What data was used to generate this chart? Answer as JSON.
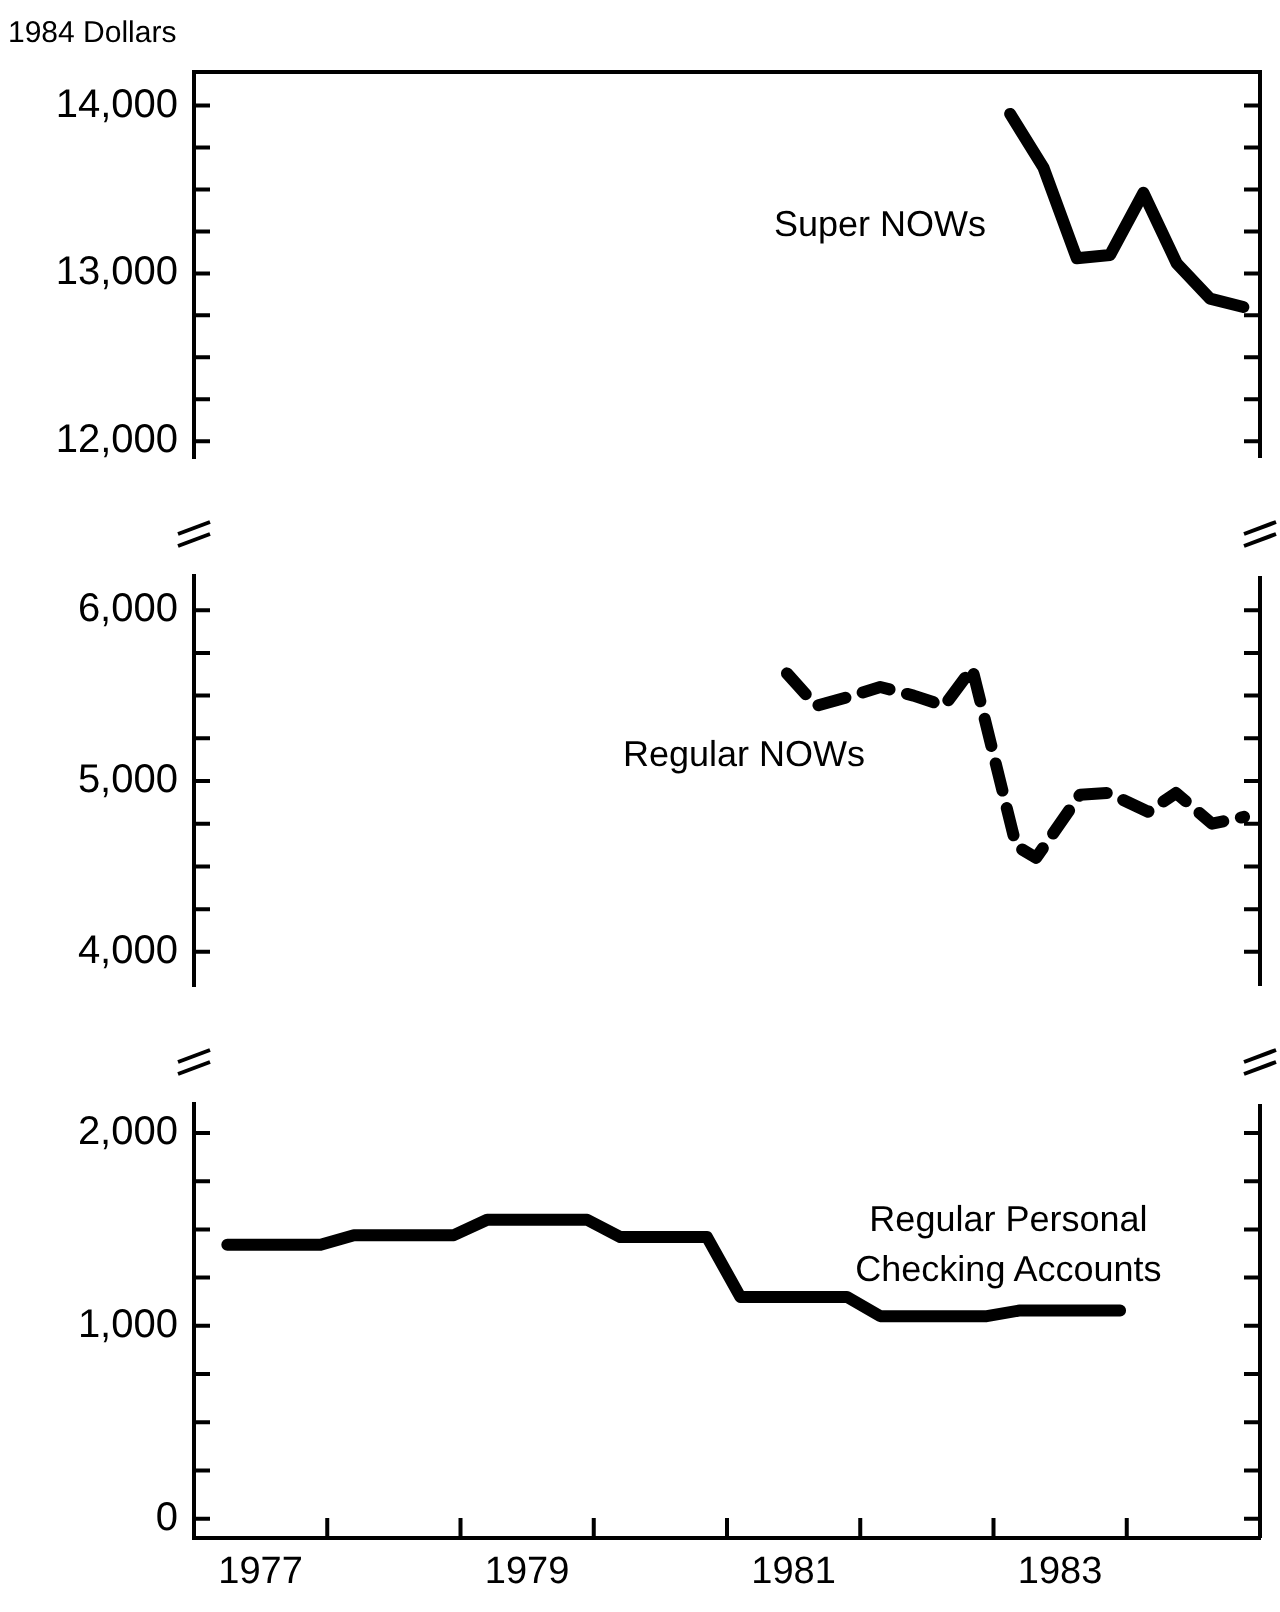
{
  "chart_data": [
    {
      "type": "line",
      "ylabel": "1984 Dollars",
      "marker": "none",
      "tick_labels": "y",
      "xlim": [
        1977,
        1985
      ],
      "ylim": [
        11900,
        14200
      ],
      "yticks": [
        {
          "value": 12000,
          "label": "12,000"
        },
        {
          "value": 12250,
          "label": null
        },
        {
          "value": 12500,
          "label": null
        },
        {
          "value": 12750,
          "label": null
        },
        {
          "value": 13000,
          "label": "13,000"
        },
        {
          "value": 13250,
          "label": null
        },
        {
          "value": 13500,
          "label": null
        },
        {
          "value": 13750,
          "label": null
        },
        {
          "value": 14000,
          "label": "14,000"
        }
      ],
      "series": [
        {
          "name": "Super NOWs",
          "color": "#000000",
          "line_style": "solid",
          "x": [
            1983.125,
            1983.375,
            1983.625,
            1983.875,
            1984.125,
            1984.375,
            1984.625,
            1984.875
          ],
          "values": [
            13950,
            13630,
            13090,
            13110,
            13480,
            13060,
            12850,
            12800
          ]
        }
      ]
    },
    {
      "type": "line",
      "marker": "none",
      "tick_labels": "y",
      "xlim": [
        1977,
        1985
      ],
      "ylim": [
        3800,
        6200
      ],
      "yticks": [
        {
          "value": 4000,
          "label": "4,000"
        },
        {
          "value": 4250,
          "label": null
        },
        {
          "value": 4500,
          "label": null
        },
        {
          "value": 4750,
          "label": null
        },
        {
          "value": 5000,
          "label": "5,000"
        },
        {
          "value": 5250,
          "label": null
        },
        {
          "value": 5500,
          "label": null
        },
        {
          "value": 5750,
          "label": null
        },
        {
          "value": 6000,
          "label": "6,000"
        }
      ],
      "series": [
        {
          "name": "Regular NOWs",
          "color": "#000000",
          "line_style": "dashed",
          "x": [
            1981.45,
            1981.67,
            1981.9,
            1982.15,
            1982.4,
            1982.63,
            1982.84,
            1983.1,
            1983.17,
            1983.32,
            1983.65,
            1983.86,
            1984.16,
            1984.37,
            1984.64,
            1984.88
          ],
          "values": [
            5630,
            5440,
            5490,
            5550,
            5500,
            5440,
            5660,
            4840,
            4620,
            4550,
            4920,
            4930,
            4820,
            4930,
            4750,
            4790
          ]
        }
      ]
    },
    {
      "type": "line",
      "marker": "none",
      "xlim": [
        1977,
        1985
      ],
      "xticks": [
        {
          "value": 1977.5,
          "label": "1977"
        },
        {
          "value": 1978,
          "label": null
        },
        {
          "value": 1979,
          "label": null
        },
        {
          "value": 1979.5,
          "label": "1979"
        },
        {
          "value": 1980,
          "label": null
        },
        {
          "value": 1981,
          "label": null
        },
        {
          "value": 1981.5,
          "label": "1981"
        },
        {
          "value": 1982,
          "label": null
        },
        {
          "value": 1983,
          "label": null
        },
        {
          "value": 1983.5,
          "label": "1983"
        },
        {
          "value": 1984,
          "label": null
        }
      ],
      "ylim": [
        -100,
        2150
      ],
      "yticks": [
        0,
        {
          "value": 250,
          "label": null
        },
        {
          "value": 500,
          "label": null
        },
        {
          "value": 750,
          "label": null
        },
        {
          "value": 1000,
          "label": "1,000"
        },
        {
          "value": 1250,
          "label": null
        },
        {
          "value": 1500,
          "label": null
        },
        {
          "value": 1750,
          "label": null
        },
        {
          "value": 2000,
          "label": "2,000"
        }
      ],
      "series": [
        {
          "name": "Regular Personal Checking Accounts",
          "color": "#000000",
          "line_style": "solid",
          "x": [
            1977.25,
            1977.95,
            1978.2,
            1978.95,
            1979.2,
            1979.95,
            1980.2,
            1980.85,
            1981.1,
            1981.9,
            1982.15,
            1982.95,
            1983.2,
            1983.95
          ],
          "values": [
            1420,
            1420,
            1470,
            1470,
            1550,
            1550,
            1460,
            1460,
            1150,
            1150,
            1050,
            1050,
            1080,
            1080
          ]
        }
      ]
    }
  ]
}
